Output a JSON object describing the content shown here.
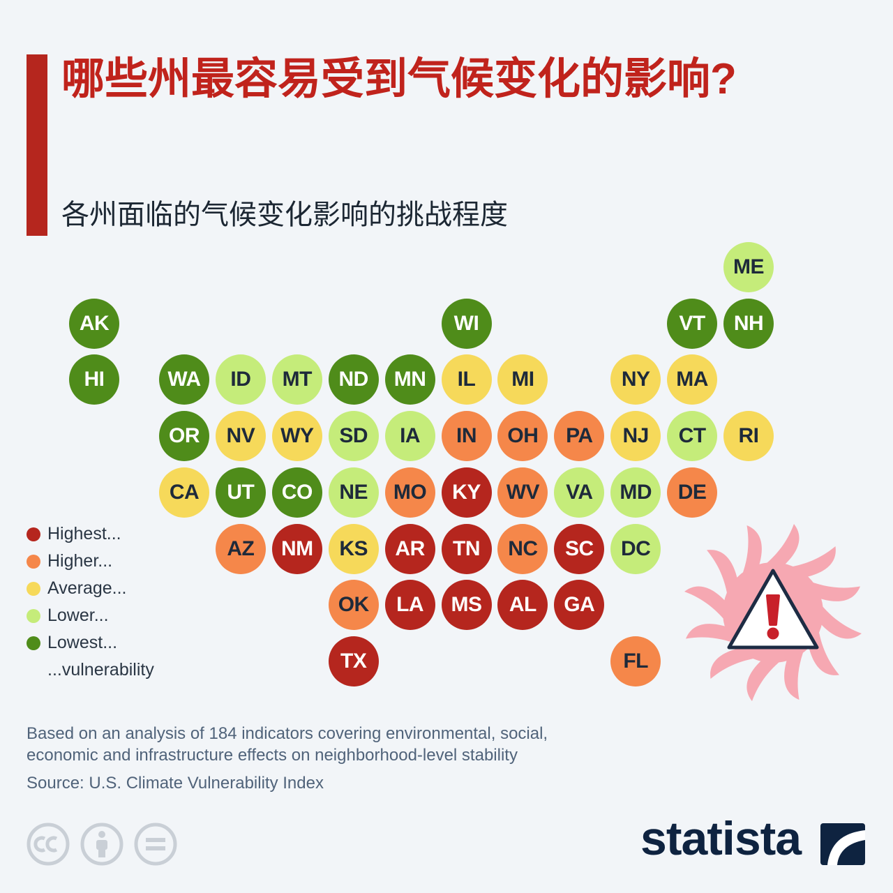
{
  "title": "哪些州最容易受到气候变化的影响?",
  "subtitle": "各州面临的气候变化影响的挑战程度",
  "levels": {
    "highest": {
      "color": "#b5261e",
      "text_color": "#ffffff"
    },
    "higher": {
      "color": "#f5874a",
      "text_color": "#1e2a3a"
    },
    "average": {
      "color": "#f6d95a",
      "text_color": "#1e2a3a"
    },
    "lower": {
      "color": "#c5ec7a",
      "text_color": "#1e2a3a"
    },
    "lowest": {
      "color": "#4f8c1a",
      "text_color": "#ffffff"
    }
  },
  "legend": {
    "items": [
      {
        "level": "highest",
        "label": "Highest..."
      },
      {
        "level": "higher",
        "label": "Higher..."
      },
      {
        "level": "average",
        "label": "Average..."
      },
      {
        "level": "lower",
        "label": "Lower..."
      },
      {
        "level": "lowest",
        "label": "Lowest..."
      }
    ],
    "footer": "...vulnerability"
  },
  "states": [
    {
      "code": "ME",
      "level": "lower"
    },
    {
      "code": "AK",
      "level": "lowest"
    },
    {
      "code": "WI",
      "level": "lowest"
    },
    {
      "code": "VT",
      "level": "lowest"
    },
    {
      "code": "NH",
      "level": "lowest"
    },
    {
      "code": "HI",
      "level": "lowest"
    },
    {
      "code": "WA",
      "level": "lowest"
    },
    {
      "code": "ID",
      "level": "lower"
    },
    {
      "code": "MT",
      "level": "lower"
    },
    {
      "code": "ND",
      "level": "lowest"
    },
    {
      "code": "MN",
      "level": "lowest"
    },
    {
      "code": "IL",
      "level": "average"
    },
    {
      "code": "MI",
      "level": "average"
    },
    {
      "code": "NY",
      "level": "average"
    },
    {
      "code": "MA",
      "level": "average"
    },
    {
      "code": "OR",
      "level": "lowest"
    },
    {
      "code": "NV",
      "level": "average"
    },
    {
      "code": "WY",
      "level": "average"
    },
    {
      "code": "SD",
      "level": "lower"
    },
    {
      "code": "IA",
      "level": "lower"
    },
    {
      "code": "IN",
      "level": "higher"
    },
    {
      "code": "OH",
      "level": "higher"
    },
    {
      "code": "PA",
      "level": "higher"
    },
    {
      "code": "NJ",
      "level": "average"
    },
    {
      "code": "CT",
      "level": "lower"
    },
    {
      "code": "RI",
      "level": "average"
    },
    {
      "code": "CA",
      "level": "average"
    },
    {
      "code": "UT",
      "level": "lowest"
    },
    {
      "code": "CO",
      "level": "lowest"
    },
    {
      "code": "NE",
      "level": "lower"
    },
    {
      "code": "MO",
      "level": "higher"
    },
    {
      "code": "KY",
      "level": "highest"
    },
    {
      "code": "WV",
      "level": "higher"
    },
    {
      "code": "VA",
      "level": "lower"
    },
    {
      "code": "MD",
      "level": "lower"
    },
    {
      "code": "DE",
      "level": "higher"
    },
    {
      "code": "AZ",
      "level": "higher"
    },
    {
      "code": "NM",
      "level": "highest"
    },
    {
      "code": "KS",
      "level": "average"
    },
    {
      "code": "AR",
      "level": "highest"
    },
    {
      "code": "TN",
      "level": "highest"
    },
    {
      "code": "NC",
      "level": "higher"
    },
    {
      "code": "SC",
      "level": "highest"
    },
    {
      "code": "DC",
      "level": "lower"
    },
    {
      "code": "OK",
      "level": "higher"
    },
    {
      "code": "LA",
      "level": "highest"
    },
    {
      "code": "MS",
      "level": "highest"
    },
    {
      "code": "AL",
      "level": "highest"
    },
    {
      "code": "GA",
      "level": "highest"
    },
    {
      "code": "TX",
      "level": "highest"
    },
    {
      "code": "FL",
      "level": "higher"
    }
  ],
  "notes": {
    "line1": "Based on an analysis of 184 indicators covering environmental, social,",
    "line2": "economic and infrastructure effects on neighborhood-level stability",
    "source": "Source: U.S. Climate Vulnerability Index"
  },
  "license_icons": [
    "cc-icon",
    "attribution-icon",
    "no-derivatives-icon"
  ],
  "decoration": {
    "icon": "hurricane-warning-icon"
  },
  "logo": {
    "text": "statista",
    "color": "#0e2340"
  }
}
